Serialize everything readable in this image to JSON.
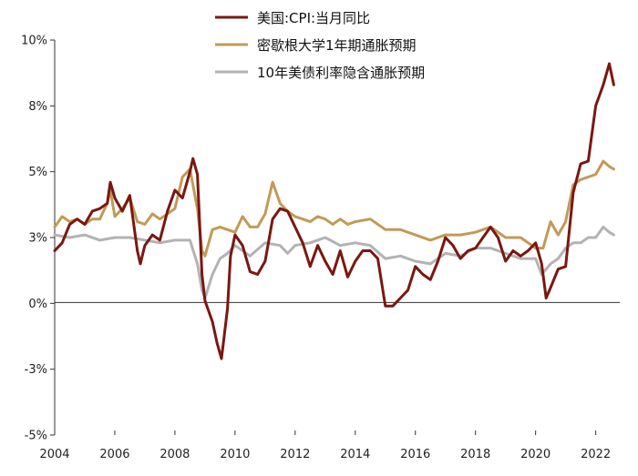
{
  "chart_data": {
    "type": "line",
    "title": "",
    "xlabel": "",
    "ylabel": "",
    "xlim": [
      2004,
      2022.8
    ],
    "ylim": [
      -5,
      10
    ],
    "y_ticks": [
      -5,
      -2.5,
      0,
      2.5,
      5,
      7.5,
      10
    ],
    "y_tick_labels": [
      "-5%",
      "-3%",
      "0%",
      "3%",
      "5%",
      "8%",
      "10%"
    ],
    "x_ticks": [
      2004,
      2006,
      2008,
      2010,
      2012,
      2014,
      2016,
      2018,
      2020,
      2022
    ],
    "x_tick_labels": [
      "2004",
      "2006",
      "2008",
      "2010",
      "2012",
      "2014",
      "2016",
      "2018",
      "2020",
      "2022"
    ],
    "grid": false,
    "legend_position": "top",
    "series": [
      {
        "name": "美国:CPI:当月同比",
        "color": "#7a1712",
        "x": [
          2004.0,
          2004.25,
          2004.5,
          2004.75,
          2005.0,
          2005.25,
          2005.5,
          2005.75,
          2005.85,
          2006.0,
          2006.25,
          2006.5,
          2006.75,
          2006.85,
          2007.0,
          2007.25,
          2007.5,
          2007.75,
          2008.0,
          2008.25,
          2008.5,
          2008.6,
          2008.75,
          2008.9,
          2009.0,
          2009.25,
          2009.4,
          2009.55,
          2009.75,
          2009.85,
          2010.0,
          2010.25,
          2010.5,
          2010.75,
          2011.0,
          2011.25,
          2011.5,
          2011.75,
          2012.0,
          2012.25,
          2012.5,
          2012.75,
          2013.0,
          2013.25,
          2013.5,
          2013.75,
          2014.0,
          2014.25,
          2014.5,
          2014.75,
          2015.0,
          2015.25,
          2015.5,
          2015.75,
          2016.0,
          2016.25,
          2016.5,
          2016.75,
          2017.0,
          2017.25,
          2017.5,
          2017.75,
          2018.0,
          2018.25,
          2018.5,
          2018.75,
          2019.0,
          2019.25,
          2019.5,
          2019.75,
          2020.0,
          2020.2,
          2020.35,
          2020.5,
          2020.75,
          2021.0,
          2021.25,
          2021.5,
          2021.75,
          2022.0,
          2022.25,
          2022.45,
          2022.6
        ],
        "values": [
          2.0,
          2.3,
          3.0,
          3.2,
          3.0,
          3.5,
          3.6,
          3.8,
          4.6,
          4.0,
          3.5,
          4.1,
          2.0,
          1.5,
          2.2,
          2.6,
          2.4,
          3.5,
          4.3,
          4.0,
          5.0,
          5.5,
          4.9,
          1.1,
          0.1,
          -0.7,
          -1.5,
          -2.1,
          -0.2,
          1.8,
          2.6,
          2.2,
          1.2,
          1.1,
          1.6,
          3.2,
          3.6,
          3.5,
          2.9,
          2.3,
          1.4,
          2.2,
          1.6,
          1.1,
          2.0,
          1.0,
          1.6,
          2.0,
          2.0,
          1.7,
          -0.1,
          -0.1,
          0.2,
          0.5,
          1.4,
          1.1,
          0.9,
          1.6,
          2.5,
          2.2,
          1.7,
          2.0,
          2.1,
          2.5,
          2.9,
          2.5,
          1.6,
          2.0,
          1.8,
          2.0,
          2.3,
          1.5,
          0.2,
          0.6,
          1.3,
          1.4,
          4.2,
          5.3,
          5.4,
          7.5,
          8.3,
          9.1,
          8.3
        ]
      },
      {
        "name": "密歇根大学1年期通胀预期",
        "color": "#c29a58",
        "x": [
          2004.0,
          2004.25,
          2004.5,
          2004.75,
          2005.0,
          2005.25,
          2005.5,
          2005.75,
          2005.85,
          2006.0,
          2006.25,
          2006.5,
          2006.75,
          2007.0,
          2007.25,
          2007.5,
          2007.75,
          2008.0,
          2008.25,
          2008.5,
          2008.75,
          2008.9,
          2009.0,
          2009.25,
          2009.5,
          2009.75,
          2010.0,
          2010.25,
          2010.5,
          2010.75,
          2011.0,
          2011.25,
          2011.5,
          2011.75,
          2012.0,
          2012.25,
          2012.5,
          2012.75,
          2013.0,
          2013.25,
          2013.5,
          2013.75,
          2014.0,
          2014.5,
          2015.0,
          2015.5,
          2016.0,
          2016.5,
          2017.0,
          2017.5,
          2018.0,
          2018.5,
          2019.0,
          2019.5,
          2020.0,
          2020.25,
          2020.5,
          2020.75,
          2021.0,
          2021.25,
          2021.5,
          2021.75,
          2022.0,
          2022.25,
          2022.45,
          2022.6
        ],
        "values": [
          2.9,
          3.3,
          3.1,
          3.2,
          3.0,
          3.2,
          3.2,
          3.8,
          4.3,
          3.3,
          3.6,
          4.0,
          3.1,
          3.0,
          3.4,
          3.2,
          3.4,
          3.6,
          4.8,
          5.1,
          3.6,
          2.0,
          1.8,
          2.8,
          2.9,
          2.8,
          2.7,
          3.3,
          2.9,
          2.9,
          3.4,
          4.6,
          3.8,
          3.5,
          3.3,
          3.2,
          3.1,
          3.3,
          3.2,
          3.0,
          3.2,
          3.0,
          3.1,
          3.2,
          2.8,
          2.8,
          2.6,
          2.4,
          2.6,
          2.6,
          2.7,
          2.9,
          2.5,
          2.5,
          2.1,
          2.1,
          3.1,
          2.6,
          3.1,
          4.5,
          4.7,
          4.8,
          4.9,
          5.4,
          5.2,
          5.1
        ]
      },
      {
        "name": "10年美债利率隐含通胀预期",
        "color": "#b3b3b3",
        "x": [
          2004.0,
          2004.5,
          2005.0,
          2005.5,
          2006.0,
          2006.5,
          2007.0,
          2007.5,
          2008.0,
          2008.5,
          2008.75,
          2008.9,
          2009.0,
          2009.25,
          2009.5,
          2009.75,
          2010.0,
          2010.5,
          2011.0,
          2011.5,
          2011.75,
          2012.0,
          2012.5,
          2013.0,
          2013.5,
          2014.0,
          2014.5,
          2015.0,
          2015.5,
          2016.0,
          2016.5,
          2017.0,
          2017.5,
          2018.0,
          2018.5,
          2019.0,
          2019.5,
          2020.0,
          2020.2,
          2020.5,
          2020.75,
          2021.0,
          2021.25,
          2021.5,
          2021.75,
          2022.0,
          2022.25,
          2022.45,
          2022.6
        ],
        "values": [
          2.6,
          2.5,
          2.6,
          2.4,
          2.5,
          2.5,
          2.4,
          2.3,
          2.4,
          2.4,
          1.5,
          0.5,
          0.2,
          1.1,
          1.7,
          1.9,
          2.2,
          1.8,
          2.3,
          2.2,
          1.9,
          2.2,
          2.3,
          2.5,
          2.2,
          2.3,
          2.2,
          1.7,
          1.8,
          1.6,
          1.5,
          1.9,
          1.8,
          2.1,
          2.1,
          1.9,
          1.7,
          1.7,
          1.1,
          1.5,
          1.7,
          2.1,
          2.3,
          2.3,
          2.5,
          2.5,
          2.9,
          2.7,
          2.6
        ]
      }
    ]
  }
}
